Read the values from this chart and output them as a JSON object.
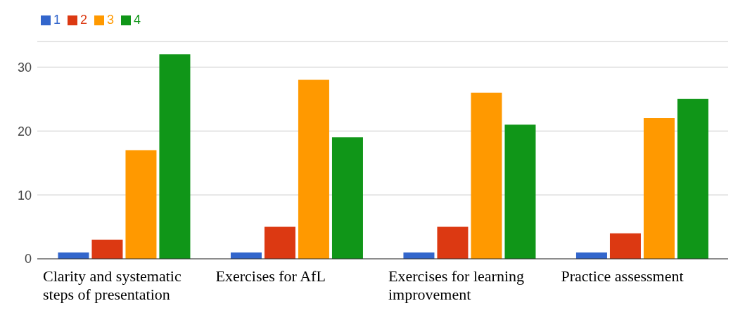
{
  "chart_data": {
    "type": "bar",
    "categories": [
      "Clarity and systematic steps of presentation",
      "Exercises for AfL",
      "Exercises for learning improvement",
      "Practice assessment"
    ],
    "series": [
      {
        "name": "1",
        "color": "#3366cc",
        "values": [
          1,
          1,
          1,
          1
        ]
      },
      {
        "name": "2",
        "color": "#dc3912",
        "values": [
          3,
          5,
          5,
          4
        ]
      },
      {
        "name": "3",
        "color": "#ff9900",
        "values": [
          17,
          28,
          26,
          22
        ]
      },
      {
        "name": "4",
        "color": "#109618",
        "values": [
          32,
          19,
          21,
          25
        ]
      }
    ],
    "ylim": [
      0,
      34
    ],
    "yticks": [
      0,
      10,
      20,
      30
    ],
    "grid": "y",
    "legend": "top left"
  }
}
